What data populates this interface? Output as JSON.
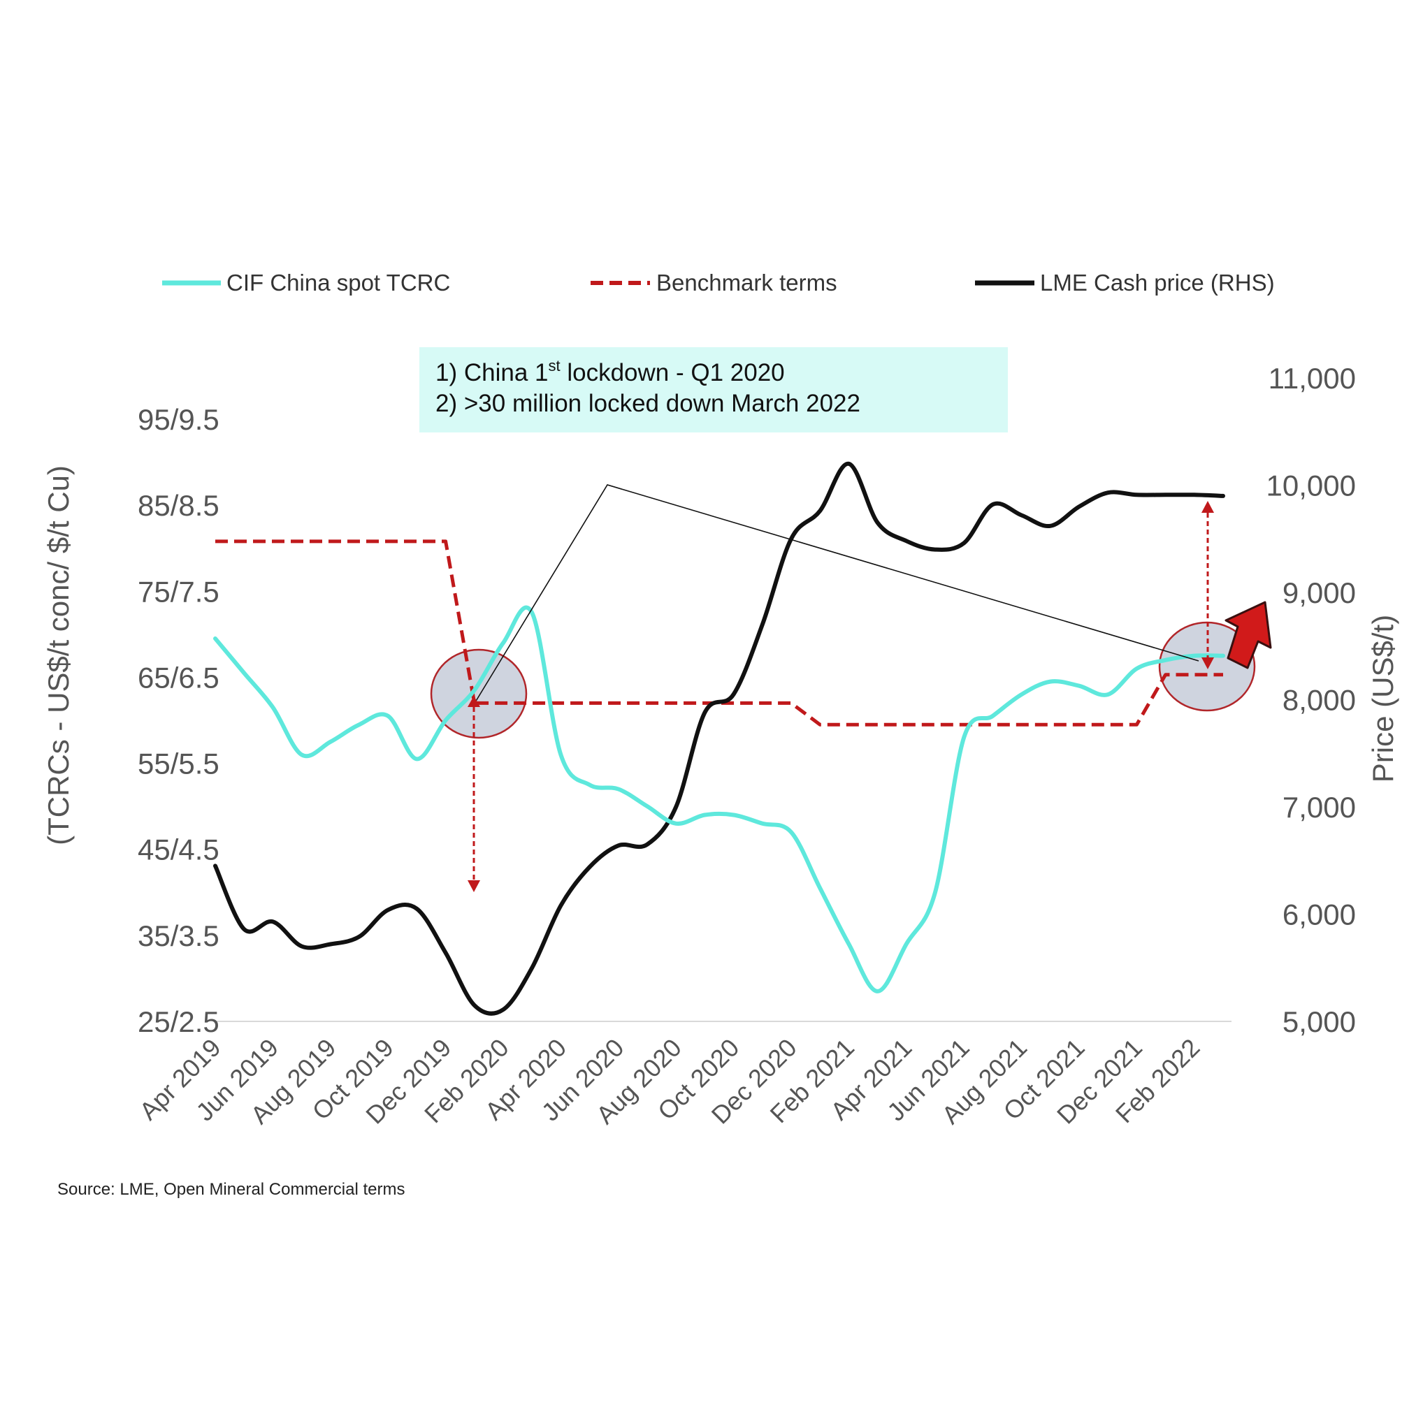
{
  "chart_data": {
    "type": "line",
    "x": [
      "Apr 2019",
      "May 2019",
      "Jun 2019",
      "Jul 2019",
      "Aug 2019",
      "Sep 2019",
      "Oct 2019",
      "Nov 2019",
      "Dec 2019",
      "Jan 2020",
      "Feb 2020",
      "Mar 2020",
      "Apr 2020",
      "May 2020",
      "Jun 2020",
      "Jul 2020",
      "Aug 2020",
      "Sep 2020",
      "Oct 2020",
      "Nov 2020",
      "Dec 2020",
      "Jan 2021",
      "Feb 2021",
      "Mar 2021",
      "Apr 2021",
      "May 2021",
      "Jun 2021",
      "Jul 2021",
      "Aug 2021",
      "Sep 2021",
      "Oct 2021",
      "Nov 2021",
      "Dec 2021",
      "Jan 2022",
      "Feb 2022",
      "Mar 2022"
    ],
    "x_tick_labels": [
      "Apr 2019",
      "Jun 2019",
      "Aug 2019",
      "Oct 2019",
      "Dec 2019",
      "Feb 2020",
      "Apr 2020",
      "Jun 2020",
      "Aug 2020",
      "Oct 2020",
      "Dec 2020",
      "Feb 2021",
      "Apr 2021",
      "Jun 2021",
      "Aug 2021",
      "Oct 2021",
      "Dec 2021",
      "Feb 2022"
    ],
    "left_axis": {
      "title": "(TCRCs - US$/t conc/ $/t Cu)",
      "ylim": [
        25,
        95
      ],
      "ticks": [
        25,
        35,
        45,
        55,
        65,
        75,
        85,
        95
      ],
      "tick_labels": [
        "25/2.5",
        "35/3.5",
        "45/4.5",
        "55/5.5",
        "65/6.5",
        "75/7.5",
        "85/8.5",
        "95/9.5"
      ]
    },
    "right_axis": {
      "title": "Price (US$/t)",
      "ylim": [
        5000,
        11000
      ],
      "ticks": [
        5000,
        6000,
        7000,
        8000,
        9000,
        10000,
        11000
      ],
      "tick_labels": [
        "5,000",
        "6,000",
        "7,000",
        "8,000",
        "9,000",
        "10,000",
        "11,000"
      ]
    },
    "series": [
      {
        "name": "CIF China spot TCRC",
        "axis": "left",
        "color": "#5ee8dc",
        "style": "solid",
        "values": [
          69.5,
          65.5,
          61.5,
          56,
          57.5,
          59.5,
          60.5,
          55.5,
          60,
          63.5,
          69,
          72.5,
          56,
          52.5,
          52,
          50,
          48,
          49,
          49,
          48,
          47,
          40.5,
          34,
          28.5,
          34,
          40,
          58,
          60.5,
          63,
          64.5,
          64,
          63,
          66,
          67,
          67.5,
          67.5
        ]
      },
      {
        "name": "Benchmark terms",
        "axis": "left",
        "color": "#c0191b",
        "style": "dashed",
        "values": [
          80.8,
          80.8,
          80.8,
          80.8,
          80.8,
          80.8,
          80.8,
          80.8,
          80.8,
          62,
          62,
          62,
          62,
          62,
          62,
          62,
          62,
          62,
          62,
          62,
          62,
          59.5,
          59.5,
          59.5,
          59.5,
          59.5,
          59.5,
          59.5,
          59.5,
          59.5,
          59.5,
          59.5,
          59.5,
          65.3,
          65.3,
          65.3
        ]
      },
      {
        "name": "LME Cash price (RHS)",
        "axis": "right",
        "color": "#111111",
        "style": "solid",
        "values": [
          6450,
          5860,
          5930,
          5700,
          5720,
          5790,
          6040,
          6050,
          5640,
          5150,
          5110,
          5500,
          6080,
          6440,
          6640,
          6650,
          7000,
          7880,
          8050,
          8700,
          9500,
          9760,
          10200,
          9650,
          9480,
          9400,
          9460,
          9820,
          9720,
          9620,
          9800,
          9930,
          9910,
          9910,
          9910,
          9900
        ]
      }
    ],
    "annotations": {
      "note_lines": [
        "1) China 1",
        "st",
        " lockdown - Q1 2020",
        "2) >30 million locked down March 2022"
      ],
      "source": "Source: LME, Open Mineral Commercial terms"
    },
    "legend_position": "top",
    "grid": false
  },
  "colors": {
    "tcrc": "#5ee8dc",
    "benchmark": "#c0191b",
    "lme": "#111111",
    "note_bg": "#d7faf6",
    "highlight_fill": "#c7ccd9",
    "highlight_stroke": "#b1262a",
    "arrow": "#d11a1a"
  }
}
